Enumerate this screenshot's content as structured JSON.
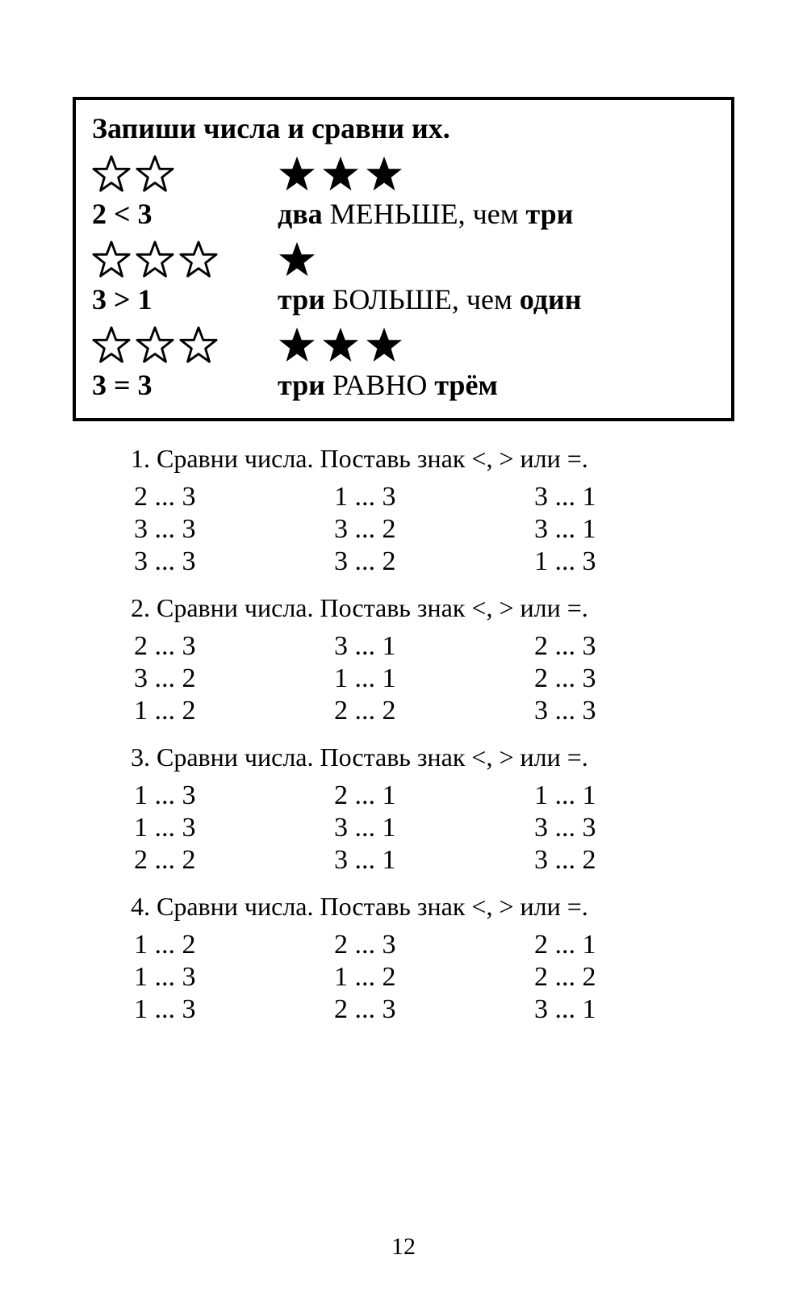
{
  "explain": {
    "title": "Запиши числа и сравни их.",
    "rows": [
      {
        "leftStars": {
          "count": 2,
          "filled": false
        },
        "rightStars": {
          "count": 3,
          "filled": true
        },
        "formula": "2 < 3",
        "desc_prefix": "два ",
        "desc_accent": "МЕНЬШЕ, чем",
        "desc_suffix": " три"
      },
      {
        "leftStars": {
          "count": 3,
          "filled": false
        },
        "rightStars": {
          "count": 1,
          "filled": true
        },
        "formula": "3 > 1",
        "desc_prefix": "три ",
        "desc_accent": "БОЛЬШЕ, чем",
        "desc_suffix": " один"
      },
      {
        "leftStars": {
          "count": 3,
          "filled": false
        },
        "rightStars": {
          "count": 3,
          "filled": true
        },
        "formula": "3 = 3",
        "desc_prefix": "три ",
        "desc_accent": "РАВНО",
        "desc_suffix": " трём"
      }
    ]
  },
  "exercises": [
    {
      "prompt": "1. Сравни числа. Поставь знак <, > или =.",
      "cells": [
        [
          "2",
          "3"
        ],
        [
          "1",
          "3"
        ],
        [
          "3",
          "1"
        ],
        [
          "3",
          "3"
        ],
        [
          "3",
          "2"
        ],
        [
          "3",
          "1"
        ],
        [
          "3",
          "3"
        ],
        [
          "3",
          "2"
        ],
        [
          "1",
          "3"
        ]
      ]
    },
    {
      "prompt": "2. Сравни числа. Поставь знак <, > или =.",
      "cells": [
        [
          "2",
          "3"
        ],
        [
          "3",
          "1"
        ],
        [
          "2",
          "3"
        ],
        [
          "3",
          "2"
        ],
        [
          "1",
          "1"
        ],
        [
          "2",
          "3"
        ],
        [
          "1",
          "2"
        ],
        [
          "2",
          "2"
        ],
        [
          "3",
          "3"
        ]
      ]
    },
    {
      "prompt": "3. Сравни числа. Поставь знак <, > или =.",
      "cells": [
        [
          "1",
          "3"
        ],
        [
          "2",
          "1"
        ],
        [
          "1",
          "1"
        ],
        [
          "1",
          "3"
        ],
        [
          "3",
          "1"
        ],
        [
          "3",
          "3"
        ],
        [
          "2",
          "2"
        ],
        [
          "3",
          "1"
        ],
        [
          "3",
          "2"
        ]
      ]
    },
    {
      "prompt": "4. Сравни числа. Поставь знак <, > или =.",
      "cells": [
        [
          "1",
          "2"
        ],
        [
          "2",
          "3"
        ],
        [
          "2",
          "1"
        ],
        [
          "1",
          "3"
        ],
        [
          "1",
          "2"
        ],
        [
          "2",
          "2"
        ],
        [
          "1",
          "3"
        ],
        [
          "2",
          "3"
        ],
        [
          "3",
          "1"
        ]
      ]
    }
  ],
  "pageNumber": "12",
  "styling": {
    "starOutlineColor": "#000000",
    "starFillColor": "#000000",
    "starEmptyFill": "#ffffff",
    "starStrokeWidth": 2,
    "boxBorderColor": "#000000",
    "boxBorderWidth": 4,
    "textColor": "#000000",
    "backgroundColor": "#ffffff",
    "titleFontSize": 36,
    "compareFontSize": 36,
    "promptFontSize": 32,
    "gridFontSize": 34,
    "pageNumberFontSize": 30
  }
}
